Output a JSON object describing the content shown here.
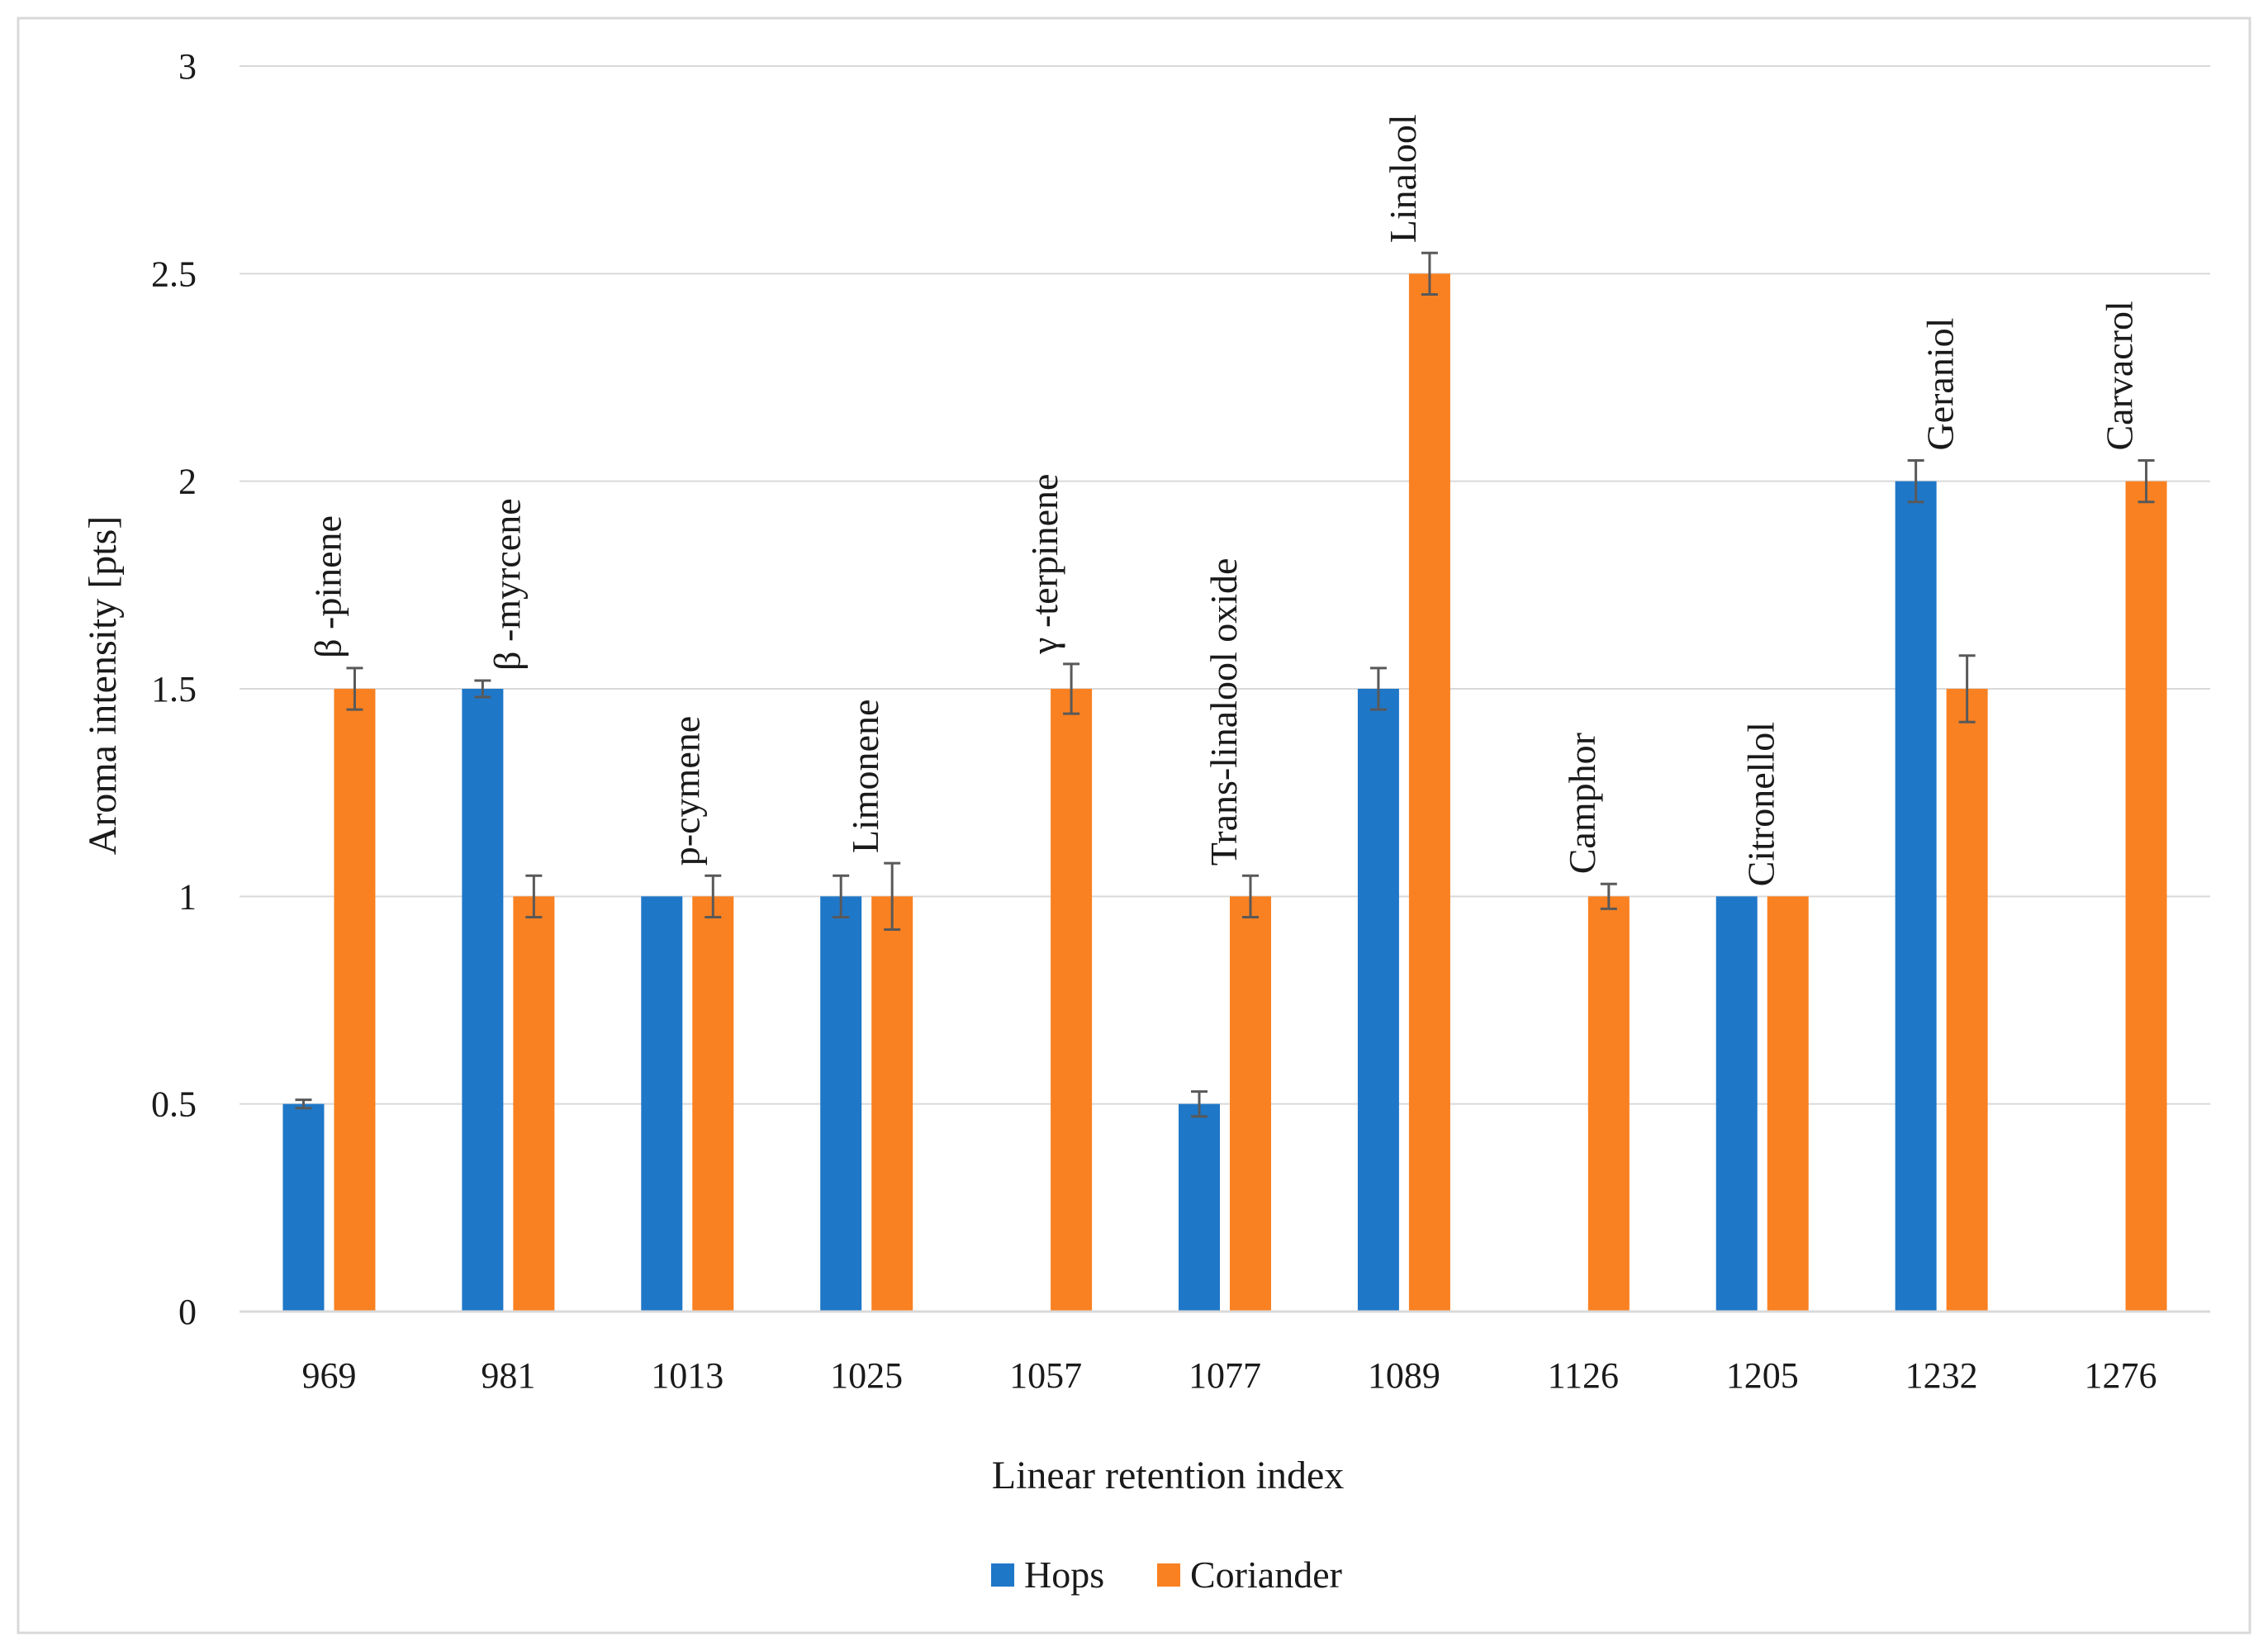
{
  "chart_data": {
    "type": "bar",
    "title": "",
    "xlabel": "Linear retention index",
    "ylabel": "Aroma intensity [pts]",
    "ylim": [
      0,
      3
    ],
    "yticks": [
      "0",
      "0.5",
      "1",
      "1.5",
      "2",
      "2.5",
      "3"
    ],
    "grid": true,
    "legend_position": "bottom",
    "categories": [
      "969",
      "981",
      "1013",
      "1025",
      "1057",
      "1077",
      "1089",
      "1126",
      "1205",
      "1232",
      "1276"
    ],
    "compound_labels": [
      "β -pinene",
      "β -myrcene",
      "p-cymene",
      "Limonene",
      "γ -terpinene",
      "Trans-linalool oxide",
      "Linalool",
      "Camphor",
      "Citronellol",
      "Geraniol",
      "Carvacrol"
    ],
    "series": [
      {
        "name": "Hops",
        "color": "#1f77c8",
        "values": [
          0.5,
          1.5,
          1.0,
          1.0,
          0,
          0.5,
          1.5,
          0,
          1.0,
          2.0,
          0
        ],
        "errors": [
          0.01,
          0.02,
          0,
          0.05,
          0,
          0.03,
          0.05,
          0,
          0,
          0.05,
          0
        ]
      },
      {
        "name": "Coriander",
        "color": "#f98121",
        "values": [
          1.5,
          1.0,
          1.0,
          1.0,
          1.5,
          1.0,
          2.5,
          1.0,
          1.0,
          1.5,
          2.0
        ],
        "errors": [
          0.05,
          0.05,
          0.05,
          0.08,
          0.06,
          0.05,
          0.05,
          0.03,
          0,
          0.08,
          0.05
        ]
      }
    ]
  }
}
